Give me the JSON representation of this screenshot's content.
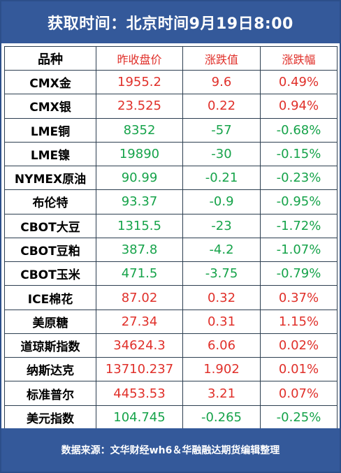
{
  "header": {
    "title": "获取时间：北京时间9月19日8:00"
  },
  "table": {
    "columns": [
      "品种",
      "昨收盘价",
      "涨跌值",
      "涨跌幅"
    ],
    "rows": [
      {
        "name": "CMX金",
        "close": "1955.2",
        "change": "9.6",
        "pct": "0.49%",
        "dir": "up"
      },
      {
        "name": "CMX银",
        "close": "23.525",
        "change": "0.22",
        "pct": "0.94%",
        "dir": "up"
      },
      {
        "name": "LME铜",
        "close": "8352",
        "change": "-57",
        "pct": "-0.68%",
        "dir": "down"
      },
      {
        "name": "LME镍",
        "close": "19890",
        "change": "-30",
        "pct": "-0.15%",
        "dir": "down"
      },
      {
        "name": "NYMEX原油",
        "close": "90.99",
        "change": "-0.21",
        "pct": "-0.23%",
        "dir": "down"
      },
      {
        "name": "布伦特",
        "close": "93.37",
        "change": "-0.9",
        "pct": "-0.95%",
        "dir": "down"
      },
      {
        "name": "CBOT大豆",
        "close": "1315.5",
        "change": "-23",
        "pct": "-1.72%",
        "dir": "down"
      },
      {
        "name": "CBOT豆粕",
        "close": "387.8",
        "change": "-4.2",
        "pct": "-1.07%",
        "dir": "down"
      },
      {
        "name": "CBOT玉米",
        "close": "471.5",
        "change": "-3.75",
        "pct": "-0.79%",
        "dir": "down"
      },
      {
        "name": "ICE棉花",
        "close": "87.02",
        "change": "0.32",
        "pct": "0.37%",
        "dir": "up"
      },
      {
        "name": "美原糖",
        "close": "27.34",
        "change": "0.31",
        "pct": "1.15%",
        "dir": "up"
      },
      {
        "name": "道琼斯指数",
        "close": "34624.3",
        "change": "6.06",
        "pct": "0.02%",
        "dir": "up"
      },
      {
        "name": "纳斯达克",
        "close": "13710.237",
        "change": "1.902",
        "pct": "0.01%",
        "dir": "up"
      },
      {
        "name": "标准普尔",
        "close": "4453.53",
        "change": "3.21",
        "pct": "0.07%",
        "dir": "up"
      },
      {
        "name": "美元指数",
        "close": "104.745",
        "change": "-0.265",
        "pct": "-0.25%",
        "dir": "down"
      }
    ]
  },
  "footer": {
    "source": "数据来源：文华财经wh6＆华融融达期货编辑整理"
  },
  "colors": {
    "header_bg": "#34599a",
    "up": "#e0302a",
    "down": "#16a34a"
  }
}
